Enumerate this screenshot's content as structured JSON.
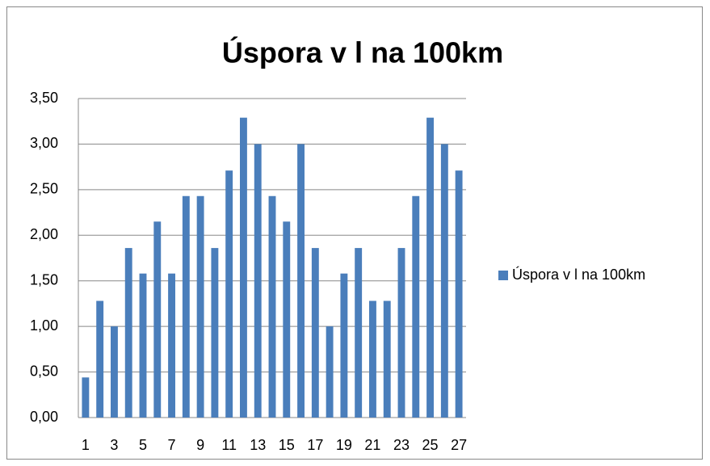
{
  "chart_data": {
    "type": "bar",
    "title": "Úspora v l na 100km",
    "categories": [
      "1",
      null,
      "3",
      null,
      "5",
      null,
      "7",
      null,
      "9",
      null,
      "11",
      null,
      "13",
      null,
      "15",
      null,
      "17",
      null,
      "19",
      null,
      "21",
      null,
      "23",
      null,
      "25",
      null,
      "27"
    ],
    "series": [
      {
        "name": "Úspora v l na 100km",
        "color": "#4a7ebb",
        "values": [
          0.44,
          1.28,
          1.0,
          1.86,
          1.58,
          2.15,
          1.58,
          2.43,
          2.43,
          1.86,
          2.71,
          3.29,
          3.0,
          2.43,
          2.15,
          3.0,
          1.86,
          1.0,
          1.58,
          1.86,
          1.28,
          1.28,
          1.86,
          2.43,
          3.29,
          3.0,
          2.71
        ]
      }
    ],
    "ylim": [
      0,
      3.5
    ],
    "yticks": [
      {
        "value": 0,
        "label": "0,00"
      },
      {
        "value": 0.5,
        "label": "0,50"
      },
      {
        "value": 1,
        "label": "1,00"
      },
      {
        "value": 1.5,
        "label": "1,50"
      },
      {
        "value": 2,
        "label": "2,00"
      },
      {
        "value": 2.5,
        "label": "2,50"
      },
      {
        "value": 3,
        "label": "3,00"
      },
      {
        "value": 3.5,
        "label": "3,50"
      }
    ],
    "grid": true,
    "legend": "right"
  }
}
